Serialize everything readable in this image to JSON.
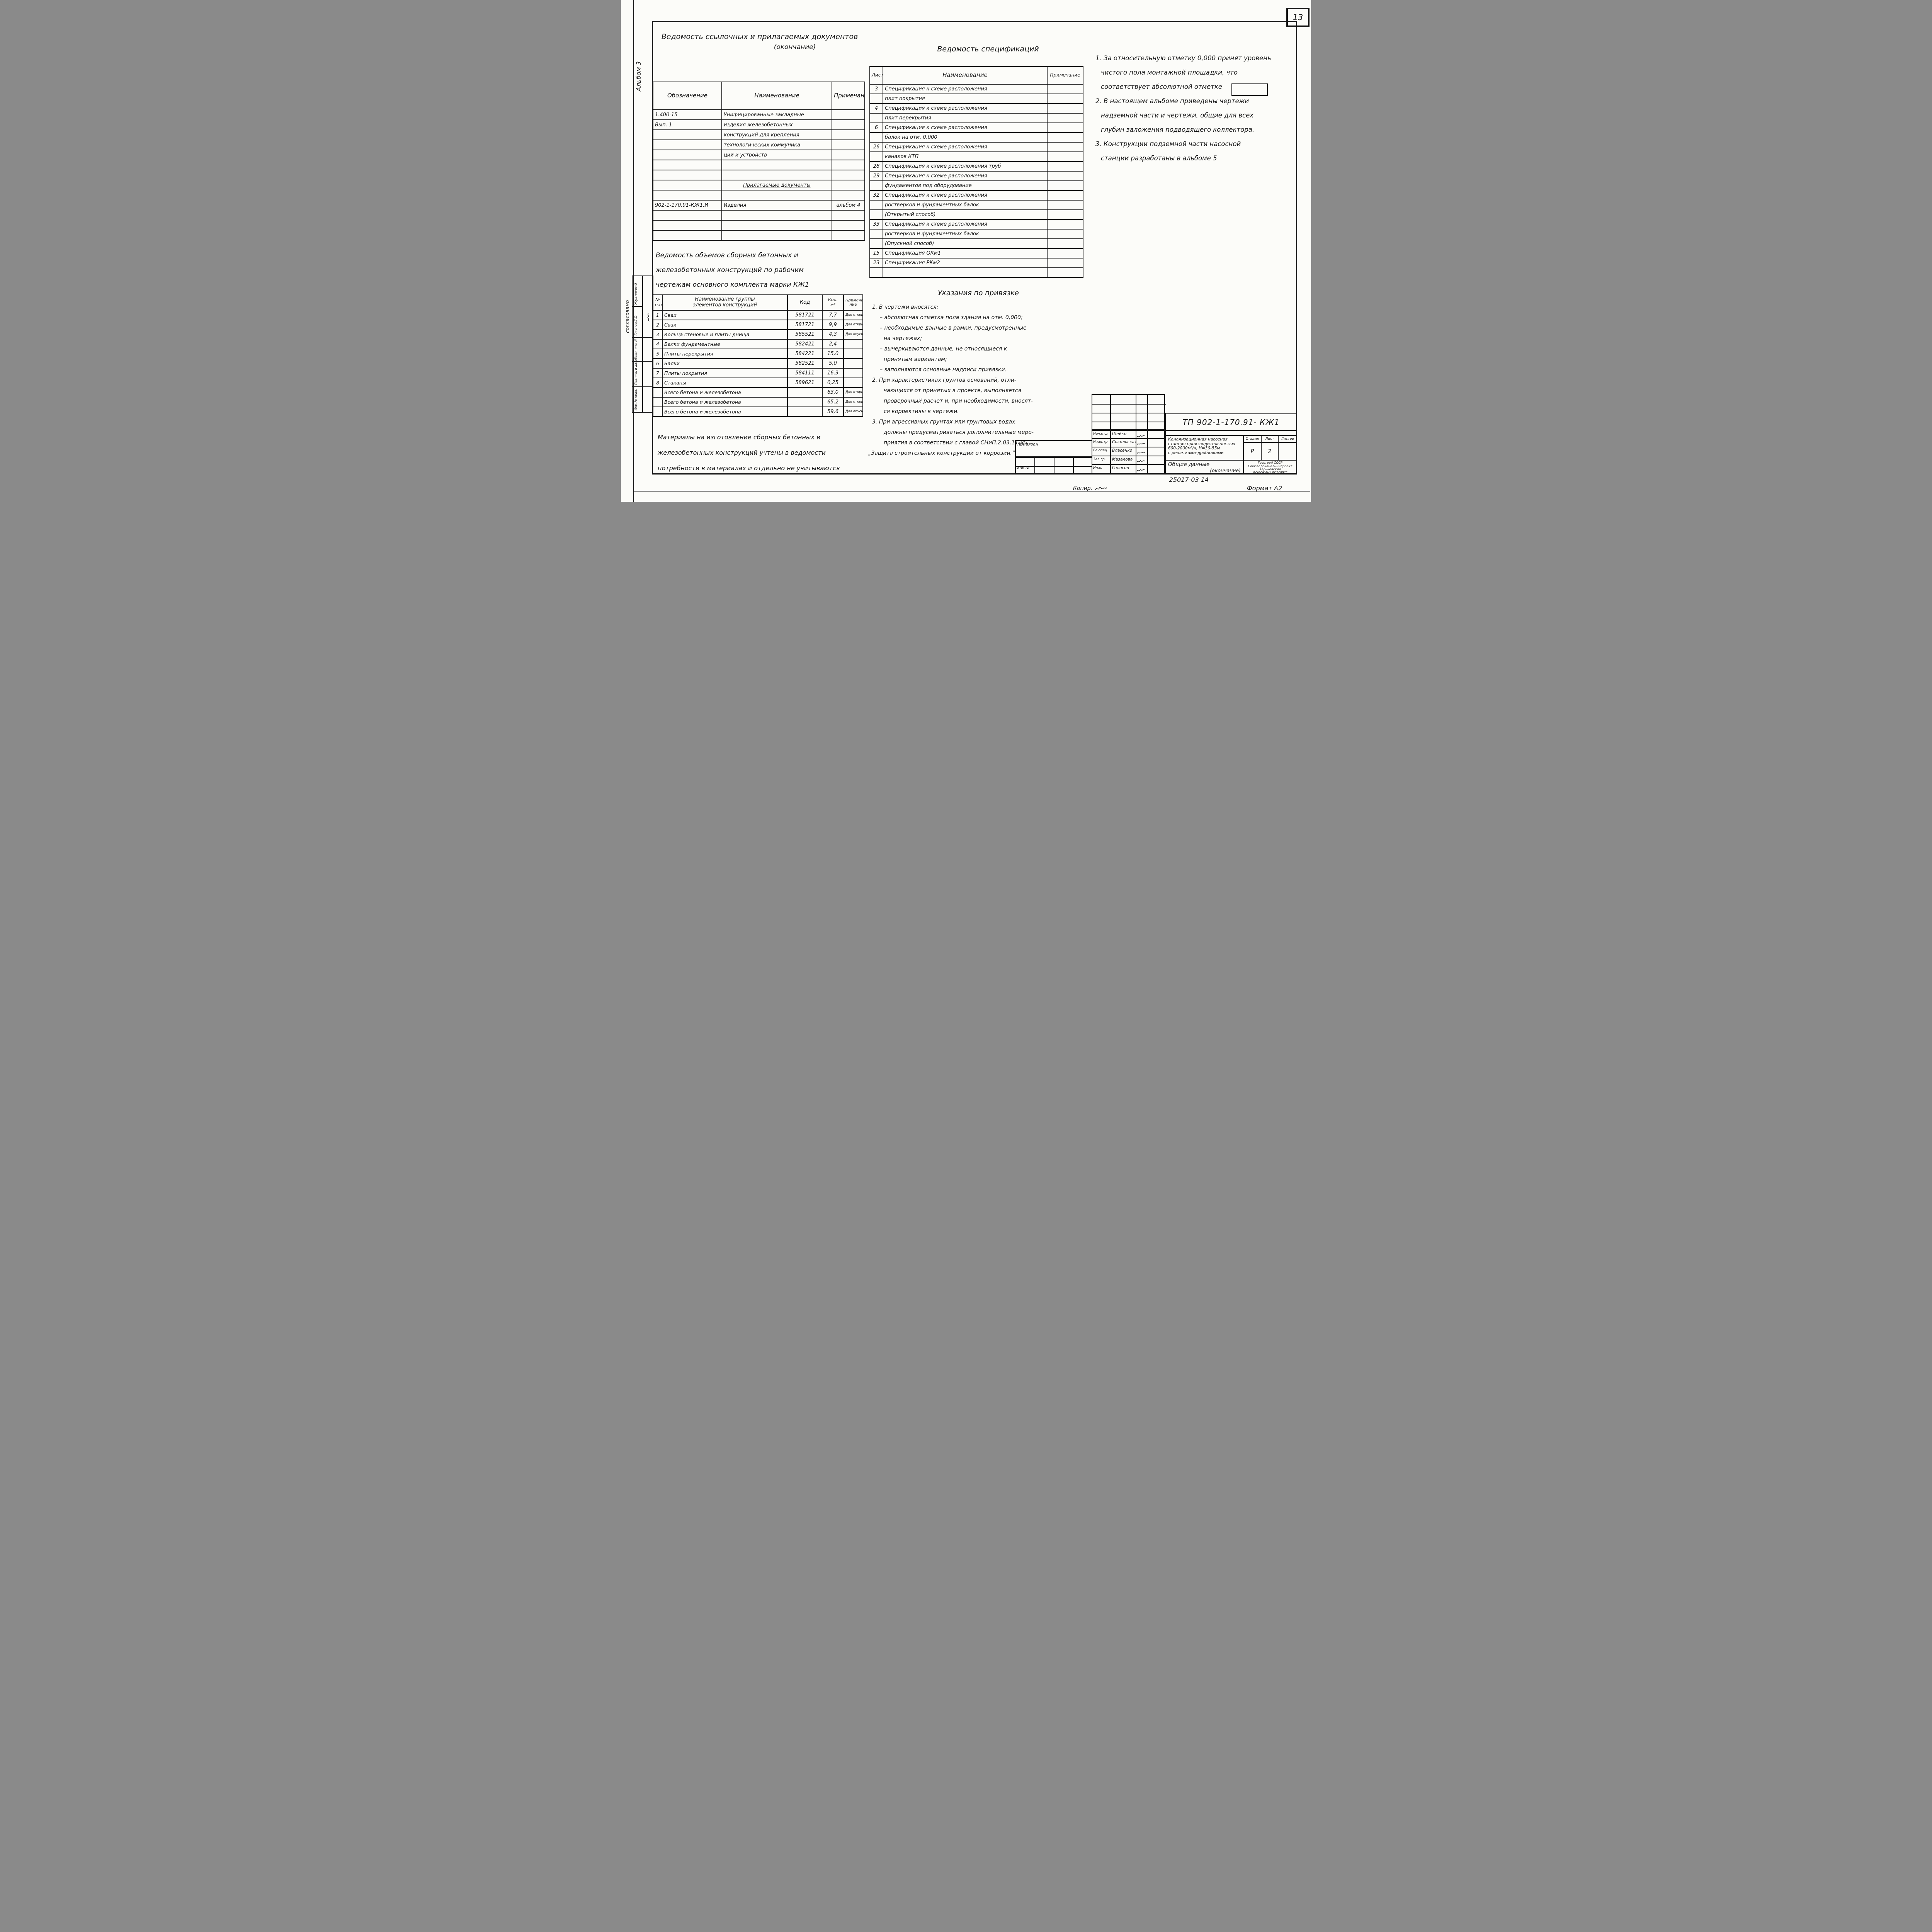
{
  "page": {
    "sheet_number": "13",
    "album_label": "Альбом 3",
    "format_label": "Формат А2",
    "copy_label": "Копир.",
    "footer_code": "25017-03   14"
  },
  "left_margin": {
    "agreed_label": "согласовано",
    "stamp1": {
      "role": "Гл.спец.Т.О.",
      "name": "Жуковский"
    },
    "stamp2_labels": [
      "Взам. инв. N",
      "Подпись и дата",
      "Инв. № подл."
    ]
  },
  "ref_table": {
    "title": "Ведомость ссылочных и прилагаемых документов",
    "subtitle": "(окончание)",
    "headers": [
      "Обозначение",
      "Наименование",
      "Примечание"
    ],
    "rows": [
      [
        "1.400-15",
        "Унифицированные закладные",
        ""
      ],
      [
        "Вып. 1",
        "изделия железобетонных",
        ""
      ],
      [
        "",
        "конструкций для крепления",
        ""
      ],
      [
        "",
        "технологических коммуника-",
        ""
      ],
      [
        "",
        "ций и устройств",
        ""
      ],
      [
        "",
        "",
        ""
      ],
      [
        "",
        "",
        ""
      ],
      [
        "",
        "Прилагаемые документы",
        ""
      ],
      [
        "",
        "",
        ""
      ],
      [
        "902-1-170.91-КЖ1.И",
        "Изделия",
        "альбом 4"
      ],
      [
        "",
        "",
        ""
      ],
      [
        "",
        "",
        ""
      ],
      [
        "",
        "",
        ""
      ]
    ]
  },
  "spec_table": {
    "title": "Ведомость спецификаций",
    "headers": [
      "Лист",
      "Наименование",
      "Примечание"
    ],
    "rows": [
      [
        "3",
        "Спецификация к схеме расположения",
        ""
      ],
      [
        "",
        "плит покрытия",
        ""
      ],
      [
        "4",
        "Спецификация к схеме расположения",
        ""
      ],
      [
        "",
        "плит перекрытия",
        ""
      ],
      [
        "6",
        "Спецификация к схеме расположения",
        ""
      ],
      [
        "",
        "балок на отм. 0.000",
        ""
      ],
      [
        "26",
        "Спецификация к схеме расположения",
        ""
      ],
      [
        "",
        "каналов КТП",
        ""
      ],
      [
        "28",
        "Спецификация к схеме расположения труб",
        ""
      ],
      [
        "29",
        "Спецификация к схеме расположения",
        ""
      ],
      [
        "",
        "фундаментов под оборудование",
        ""
      ],
      [
        "32",
        "Спецификация к схеме расположения",
        ""
      ],
      [
        "",
        "ростверков и фундаментных балок",
        ""
      ],
      [
        "",
        "(Открытый способ)",
        ""
      ],
      [
        "33",
        "Спецификация к схеме расположения",
        ""
      ],
      [
        "",
        "ростверков и фундаментных балок",
        ""
      ],
      [
        "",
        "(Опускной способ)",
        ""
      ],
      [
        "15",
        "Спецификация ОКм1",
        ""
      ],
      [
        "23",
        "Спецификация РКм2",
        ""
      ],
      [
        "",
        "",
        ""
      ]
    ]
  },
  "site_notes": {
    "lines": [
      {
        "c": "n",
        "t": "1. За относительную отметку 0,000 принят уровень"
      },
      {
        "c": "c",
        "t": "чистого пола монтажной площадки, что"
      },
      {
        "c": "c",
        "t": "соответствует абсолютной отметке"
      },
      {
        "c": "n",
        "t": "2. В настоящем альбоме приведены чертежи"
      },
      {
        "c": "c",
        "t": "надземной части и чертежи, общие для всех"
      },
      {
        "c": "c",
        "t": "глубин заложения подводящего коллектора."
      },
      {
        "c": "n",
        "t": "3. Конструкции подземной части насосной"
      },
      {
        "c": "c",
        "t": "станции разработаны в альбоме 5"
      }
    ]
  },
  "binding_notes": {
    "title": "Указания по привязке",
    "lines": [
      {
        "c": "n",
        "t": "1.  В чертежи вносятся:"
      },
      {
        "c": "d",
        "t": "– абсолютная отметка пола здания на отм. 0,000;"
      },
      {
        "c": "d",
        "t": "– необходимые данные в рамки, предусмотренные"
      },
      {
        "c": "c",
        "t": "на чертежах;"
      },
      {
        "c": "d",
        "t": "– вычеркиваются данные, не относящиеся к"
      },
      {
        "c": "c",
        "t": "принятым вариантам;"
      },
      {
        "c": "d",
        "t": "– заполняются основные надписи привязки."
      },
      {
        "c": "n",
        "t": "2. При характеристиках грунтов оснований, отли-"
      },
      {
        "c": "c",
        "t": "чающихся от принятых в проекте, выполняется"
      },
      {
        "c": "c",
        "t": "проверочный расчет и, при необходимости, вносят-"
      },
      {
        "c": "c",
        "t": "ся коррективы в чертежи."
      },
      {
        "c": "n",
        "t": "3. При агрессивных грунтах или грунтовых водах"
      },
      {
        "c": "c",
        "t": "должны предусматриваться дополнительные меро-"
      },
      {
        "c": "c",
        "t": "приятия в соответствии с  главой СНиП.2.03.11-85"
      },
      {
        "c": "q",
        "t": "„Защита строительных конструкций от коррозии.”"
      }
    ]
  },
  "volumes_table": {
    "title_lines": [
      "Ведомость объемов сборных бетонных и",
      "железобетонных конструкций по рабочим",
      "чертежам основного комплекта  марки КЖ1"
    ],
    "headers": {
      "num": "№\nп.п.",
      "name": "Наименование  группы\nэлементов  конструкций",
      "code": "Код",
      "qty": "Кол.\nм³",
      "note": "Примеча-\nние"
    },
    "rows": [
      [
        "1",
        "Сваи",
        "581721",
        "7,7",
        "Для открытого способа Нк=4,0"
      ],
      [
        "2",
        "Сваи",
        "581721",
        "9,9",
        "Для открытого способа, Нк=5,5"
      ],
      [
        "3",
        "Кольца стеновые и плиты днища",
        "585521",
        "4,3",
        "Для опускного способа и „стена в грунте”"
      ],
      [
        "4",
        "Балки фундаментные",
        "582421",
        "2,4",
        ""
      ],
      [
        "5",
        "Плиты перекрытия",
        "584221",
        "15,0",
        ""
      ],
      [
        "6",
        "Балки",
        "582521",
        "5,0",
        ""
      ],
      [
        "7",
        "Плиты покрытия",
        "584111",
        "16,3",
        ""
      ],
      [
        "8",
        "Стаканы",
        "589621",
        "0,25",
        ""
      ],
      [
        "",
        "Всего бетона и железобетона",
        "",
        "63,0",
        "Для открытого способа, Нк=4,0"
      ],
      [
        "",
        "Всего бетона и железобетона",
        "",
        "65,2",
        "Для открытого способа, Нк=5,5"
      ],
      [
        "",
        "Всего бетона и железобетона",
        "",
        "59,6",
        "Для опускного способа „сте- на в грунте”"
      ]
    ]
  },
  "materials_note": {
    "lines": [
      {
        "c": "n",
        "t": "Материалы на изготовление сборных бетонных и"
      },
      {
        "c": "n",
        "t": "железобетонных конструкций учтены в ведомости"
      },
      {
        "c": "n",
        "t": "потребности в материалах и отдельно не учитываются"
      }
    ]
  },
  "title_block": {
    "doc_number": "ТП 902-1-170.91- КЖ1",
    "attached_label": "привязан",
    "inv_label": "Инв №",
    "people": [
      {
        "role": "Нач.отд",
        "name": "Шейко"
      },
      {
        "role": "Н.контр.",
        "name": "Сокольская"
      },
      {
        "role": "Гл.спец.",
        "name": "Власенко"
      },
      {
        "role": "Зав.гр.",
        "name": "Мазалова"
      },
      {
        "role": "Инж.",
        "name": "Голосов"
      }
    ],
    "project_lines": [
      "Канализационная насосная",
      "станция производительностью",
      "600-2000м³/ч, Н=30-55м",
      "с решетками-дробилками"
    ],
    "stage_header": "Стадия",
    "sheet_header": "Лист",
    "sheets_header": "Листов",
    "stage": "Р",
    "sheet": "2",
    "sheets": "",
    "subject_line1": "Общие  данные",
    "subject_line2": "(окончание)",
    "org_lines": [
      "Госстрой СССР",
      "Союзводоканалниипроект",
      "Харьковский",
      "ВОДОКАНАЛПРОЕКТ"
    ]
  }
}
